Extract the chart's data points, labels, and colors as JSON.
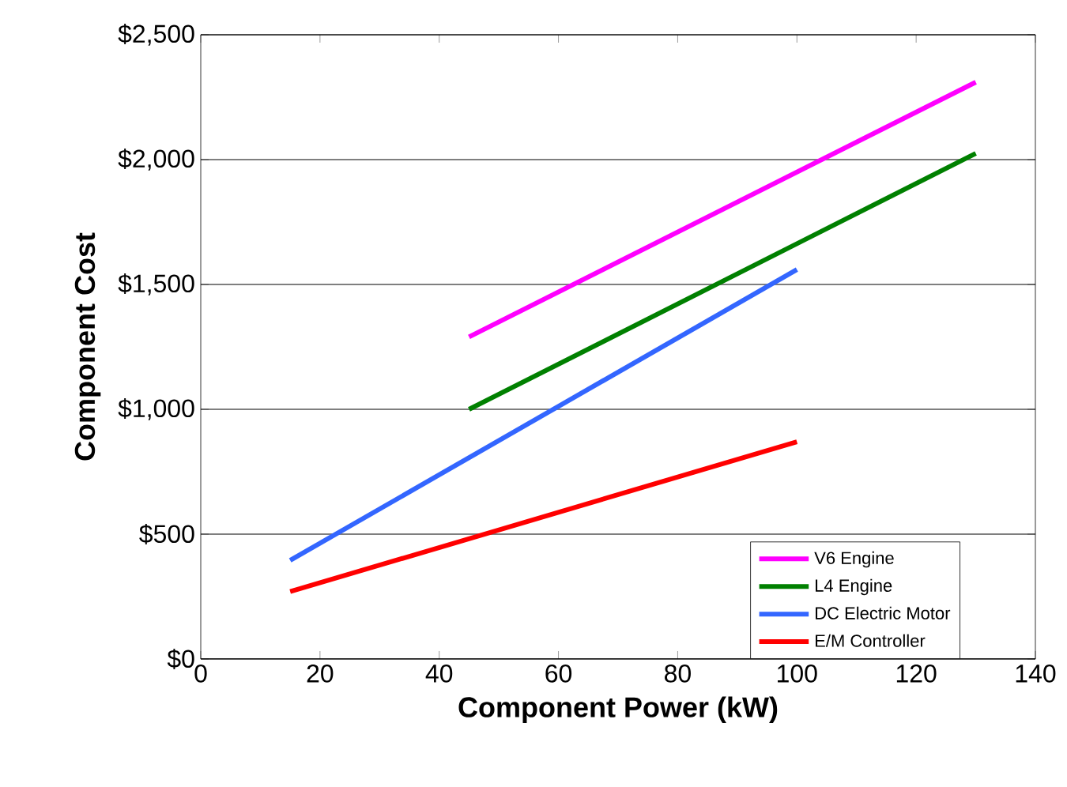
{
  "chart_data": {
    "type": "line",
    "xlabel": "Component Power (kW)",
    "ylabel": "Component Cost",
    "xlim": [
      0,
      140
    ],
    "xticks": [
      0,
      20,
      40,
      60,
      80,
      100,
      120,
      140
    ],
    "ylim": [
      0,
      2500
    ],
    "yticks": [
      {
        "value": 0,
        "label": "$0"
      },
      {
        "value": 500,
        "label": "$500"
      },
      {
        "value": 1000,
        "label": "$1,000"
      },
      {
        "value": 1500,
        "label": "$1,500"
      },
      {
        "value": 2000,
        "label": "$2,000"
      },
      {
        "value": 2500,
        "label": "$2,500"
      }
    ],
    "grid": "y",
    "legend": "bottom right",
    "marker": "none",
    "line_style": "solid",
    "series": [
      {
        "name": "V6 Engine",
        "color": "#ff00ff",
        "x": [
          45,
          130
        ],
        "values": [
          1290,
          2310
        ]
      },
      {
        "name": "L4 Engine",
        "color": "#008000",
        "x": [
          45,
          130
        ],
        "values": [
          1000,
          2025
        ]
      },
      {
        "name": "DC Electric Motor",
        "color": "#3366ff",
        "x": [
          15,
          100
        ],
        "values": [
          395,
          1560
        ]
      },
      {
        "name": "E/M Controller",
        "color": "#ff0000",
        "x": [
          15,
          100
        ],
        "values": [
          270,
          870
        ]
      }
    ]
  }
}
